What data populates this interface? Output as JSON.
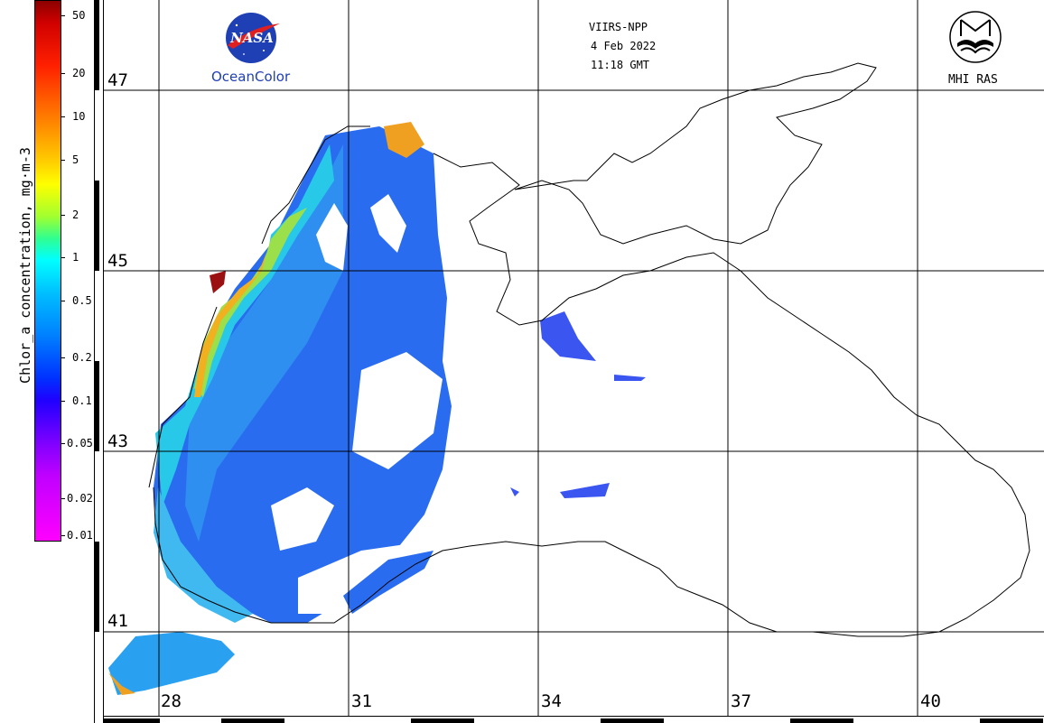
{
  "map": {
    "satellite": "VIIRS-NPP",
    "date": "4 Feb 2022",
    "time": "11:18 GMT",
    "latitudes": [
      "47",
      "45",
      "43",
      "41"
    ],
    "longitudes": [
      "28",
      "31",
      "34",
      "37",
      "40"
    ]
  },
  "colorbar": {
    "label": "Chlor_a concentration, mg·m-3",
    "ticks": [
      "50",
      "20",
      "10",
      "5",
      "2",
      "1",
      "0.5",
      "0.2",
      "0.1",
      "0.05",
      "0.02",
      "0.01"
    ],
    "colors": [
      "#ff44ff",
      "#8a00ff",
      "#0000ff",
      "#00aaff",
      "#00ffff",
      "#55ff55",
      "#ffff00",
      "#ff8800",
      "#ff0000",
      "#aa0000"
    ]
  },
  "logos": {
    "nasa_text": "NASA",
    "oceancolor": "OceanColor",
    "mhi": "MHI RAS"
  }
}
